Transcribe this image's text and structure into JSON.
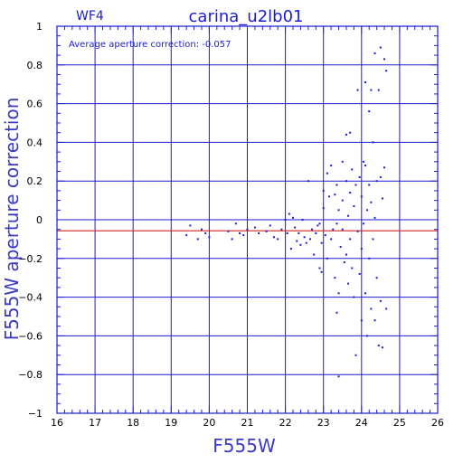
{
  "chart_data": {
    "type": "scatter",
    "title": "carina_u2lb01",
    "chip": "WF4",
    "annotation": "Average aperture correction: -0.057",
    "xlabel": "F555W",
    "ylabel": "F555W aperture correction",
    "xlim": [
      16,
      26
    ],
    "ylim": [
      -1,
      1
    ],
    "xticks": [
      16,
      17,
      18,
      19,
      20,
      21,
      22,
      23,
      24,
      25,
      26
    ],
    "yticks": [
      -1,
      -0.8,
      -0.6,
      -0.4,
      -0.2,
      0,
      0.2,
      0.4,
      0.6,
      0.8,
      1
    ],
    "xtick_labels": [
      "16",
      "17",
      "18",
      "19",
      "20",
      "21",
      "22",
      "23",
      "24",
      "25",
      "26"
    ],
    "ytick_labels": [
      "−1",
      "−0.8",
      "−0.6",
      "−0.4",
      "−0.2",
      "0",
      "0.2",
      "0.4",
      "0.6",
      "0.8",
      "1"
    ],
    "grid": true,
    "reference_line": {
      "y": -0.057,
      "color": "#d02020"
    },
    "colors": {
      "frame": "#1c1cd0",
      "grid": "#1c1cd0",
      "points": "#1c1cd0"
    },
    "points": [
      [
        19.5,
        -0.03
      ],
      [
        19.4,
        -0.08
      ],
      [
        19.7,
        -0.1
      ],
      [
        19.8,
        -0.05
      ],
      [
        19.9,
        -0.07
      ],
      [
        20.0,
        -0.09
      ],
      [
        20.5,
        -0.06
      ],
      [
        20.6,
        -0.1
      ],
      [
        20.7,
        -0.02
      ],
      [
        20.8,
        -0.07
      ],
      [
        20.9,
        -0.08
      ],
      [
        21.0,
        -0.05
      ],
      [
        21.2,
        -0.04
      ],
      [
        21.3,
        -0.07
      ],
      [
        21.5,
        -0.06
      ],
      [
        21.6,
        -0.03
      ],
      [
        21.7,
        -0.09
      ],
      [
        21.8,
        -0.1
      ],
      [
        21.9,
        -0.05
      ],
      [
        22.0,
        0.0
      ],
      [
        22.05,
        -0.07
      ],
      [
        22.1,
        0.03
      ],
      [
        22.15,
        -0.15
      ],
      [
        22.2,
        0.01
      ],
      [
        22.25,
        -0.04
      ],
      [
        22.3,
        -0.11
      ],
      [
        22.35,
        -0.07
      ],
      [
        22.4,
        -0.13
      ],
      [
        22.45,
        0.0
      ],
      [
        22.5,
        -0.09
      ],
      [
        22.55,
        -0.12
      ],
      [
        22.6,
        0.2
      ],
      [
        22.65,
        -0.1
      ],
      [
        22.7,
        -0.05
      ],
      [
        22.75,
        -0.18
      ],
      [
        22.8,
        -0.07
      ],
      [
        22.85,
        -0.03
      ],
      [
        22.9,
        -0.02
      ],
      [
        22.95,
        -0.12
      ],
      [
        22.9,
        -0.25
      ],
      [
        22.95,
        -0.27
      ],
      [
        23.0,
        0.15
      ],
      [
        23.0,
        0.06
      ],
      [
        23.05,
        -0.08
      ],
      [
        23.1,
        0.24
      ],
      [
        23.1,
        -0.2
      ],
      [
        23.15,
        0.12
      ],
      [
        23.2,
        0.28
      ],
      [
        23.2,
        -0.1
      ],
      [
        23.25,
        -0.05
      ],
      [
        23.3,
        0.13
      ],
      [
        23.3,
        -0.3
      ],
      [
        23.35,
        0.18
      ],
      [
        23.35,
        -0.02
      ],
      [
        23.35,
        -0.48
      ],
      [
        23.4,
        0.05
      ],
      [
        23.4,
        -0.38
      ],
      [
        23.4,
        -0.81
      ],
      [
        23.45,
        -0.14
      ],
      [
        23.5,
        0.3
      ],
      [
        23.5,
        0.1
      ],
      [
        23.5,
        -0.05
      ],
      [
        23.55,
        -0.22
      ],
      [
        23.6,
        0.44
      ],
      [
        23.6,
        0.2
      ],
      [
        23.6,
        -0.18
      ],
      [
        23.65,
        0.02
      ],
      [
        23.65,
        -0.33
      ],
      [
        23.7,
        0.45
      ],
      [
        23.7,
        0.14
      ],
      [
        23.7,
        -0.1
      ],
      [
        23.75,
        0.26
      ],
      [
        23.75,
        -0.25
      ],
      [
        23.8,
        0.07
      ],
      [
        23.8,
        -0.4
      ],
      [
        23.85,
        0.18
      ],
      [
        23.85,
        -0.7
      ],
      [
        23.9,
        0.67
      ],
      [
        23.9,
        -0.06
      ],
      [
        23.95,
        0.22
      ],
      [
        23.95,
        -0.28
      ],
      [
        24.0,
        0.12
      ],
      [
        24.0,
        -0.15
      ],
      [
        24.0,
        -0.52
      ],
      [
        24.05,
        0.3
      ],
      [
        24.05,
        -0.02
      ],
      [
        24.1,
        0.71
      ],
      [
        24.1,
        0.28
      ],
      [
        24.1,
        -0.38
      ],
      [
        24.15,
        0.05
      ],
      [
        24.15,
        -0.6
      ],
      [
        24.2,
        0.56
      ],
      [
        24.2,
        0.18
      ],
      [
        24.2,
        -0.2
      ],
      [
        24.25,
        0.67
      ],
      [
        24.25,
        0.09
      ],
      [
        24.25,
        -0.46
      ],
      [
        24.3,
        0.4
      ],
      [
        24.3,
        -0.1
      ],
      [
        24.35,
        0.86
      ],
      [
        24.35,
        0.01
      ],
      [
        24.35,
        -0.52
      ],
      [
        24.4,
        0.2
      ],
      [
        24.4,
        -0.3
      ],
      [
        24.45,
        0.67
      ],
      [
        24.45,
        -0.65
      ],
      [
        24.5,
        0.89
      ],
      [
        24.5,
        0.22
      ],
      [
        24.5,
        -0.42
      ],
      [
        24.55,
        0.11
      ],
      [
        24.55,
        -0.66
      ],
      [
        24.6,
        0.83
      ],
      [
        24.6,
        0.27
      ],
      [
        24.65,
        0.77
      ],
      [
        24.65,
        -0.46
      ]
    ]
  }
}
